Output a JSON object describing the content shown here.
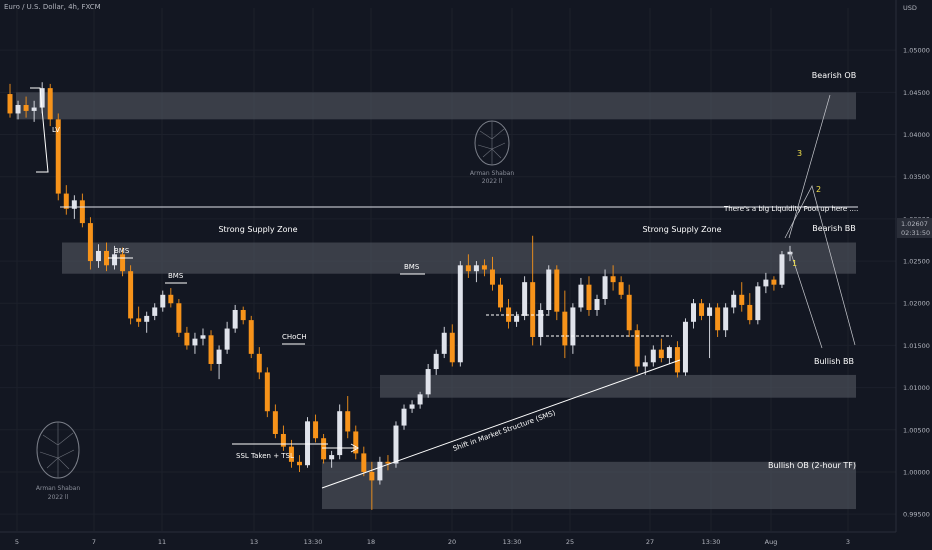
{
  "header": {
    "symbol_title": "Euro / U.S. Dollar, 4h, FXCM",
    "currency": "USD"
  },
  "price_tag": {
    "value": "1.02607",
    "countdown": "02:31:50"
  },
  "watermark": {
    "author": "Arman Shaban",
    "year": "2022 ll"
  },
  "zones": [
    {
      "label": "Bearish OB",
      "top": 1.045,
      "bottom": 1.0418,
      "x_start": 0,
      "x_end": 156
    },
    {
      "label": "Strong Supply Zone",
      "top": 1.0272,
      "bottom": 1.0235,
      "x_start": 18,
      "x_end": 156
    },
    {
      "label": "Strong Supply Zone",
      "top": 1.0272,
      "bottom": 1.0235,
      "x_start": 18,
      "x_end": 156,
      "hidden_rect": true
    },
    {
      "label": "Bearish BB",
      "top": 1.0272,
      "bottom": 1.0235,
      "x_start": 18,
      "x_end": 156,
      "hidden_rect": true
    },
    {
      "label": "Bullish BB",
      "top": 1.0115,
      "bottom": 1.0088,
      "x_start": 84,
      "x_end": 156
    },
    {
      "label": "Bullish OB (2-hour TF)",
      "top": 1.0012,
      "bottom": 0.9956,
      "x_start": 70,
      "x_end": 156
    }
  ],
  "annotations": {
    "lv": "LV",
    "bms_1": "BMS",
    "bms_2": "BMS",
    "bms_3": "BMS",
    "choch": "CHoCH",
    "ssl": "SSL Taken + TSL",
    "sms": "Shift in Market Structure (SMS)",
    "liquidity": "There's a big Liquidity Pool up here ....",
    "path_1": "1",
    "path_2": "2",
    "path_3": "3"
  },
  "chart_data": {
    "type": "candlestick",
    "title": "Euro / U.S. Dollar, 4h, FXCM",
    "ylabel": "USD",
    "ylim": [
      0.993,
      1.055
    ],
    "y_ticks": [
      "1.05000",
      "1.04500",
      "1.04000",
      "1.03500",
      "1.03000",
      "1.02500",
      "1.02000",
      "1.01500",
      "1.01000",
      "1.00500",
      "1.00000",
      "0.99500"
    ],
    "x_ticks": [
      "5",
      "7",
      "11",
      "13",
      "13:30",
      "18",
      "20",
      "13:30",
      "25",
      "27",
      "13:30",
      "Aug",
      "3"
    ],
    "colors": {
      "up": "#e0e3eb",
      "down": "#f7931a",
      "background": "#131722",
      "zone": "#4a4d57"
    },
    "candles": [
      [
        1.0448,
        1.046,
        1.042,
        1.0425
      ],
      [
        1.0425,
        1.044,
        1.0418,
        1.0435
      ],
      [
        1.0435,
        1.0445,
        1.042,
        1.0428
      ],
      [
        1.0428,
        1.044,
        1.0415,
        1.0432
      ],
      [
        1.0432,
        1.0462,
        1.0425,
        1.0455
      ],
      [
        1.0455,
        1.046,
        1.041,
        1.0418
      ],
      [
        1.0418,
        1.0425,
        1.0322,
        1.033
      ],
      [
        1.033,
        1.034,
        1.0305,
        1.0312
      ],
      [
        1.0312,
        1.0328,
        1.03,
        1.0322
      ],
      [
        1.0322,
        1.033,
        1.029,
        1.0295
      ],
      [
        1.0295,
        1.0302,
        1.024,
        1.025
      ],
      [
        1.025,
        1.027,
        1.0242,
        1.0262
      ],
      [
        1.0262,
        1.0272,
        1.0238,
        1.0245
      ],
      [
        1.0245,
        1.0268,
        1.024,
        1.0258
      ],
      [
        1.0258,
        1.0266,
        1.0232,
        1.0238
      ],
      [
        1.0238,
        1.0245,
        1.0175,
        1.0182
      ],
      [
        1.0182,
        1.0196,
        1.0172,
        1.0178
      ],
      [
        1.0178,
        1.019,
        1.0165,
        1.0185
      ],
      [
        1.0185,
        1.02,
        1.018,
        1.0195
      ],
      [
        1.0195,
        1.0215,
        1.019,
        1.021
      ],
      [
        1.021,
        1.0218,
        1.0195,
        1.02
      ],
      [
        1.02,
        1.0205,
        1.016,
        1.0165
      ],
      [
        1.0165,
        1.0172,
        1.0145,
        1.015
      ],
      [
        1.015,
        1.0165,
        1.014,
        1.0158
      ],
      [
        1.0158,
        1.017,
        1.015,
        1.0162
      ],
      [
        1.0162,
        1.0168,
        1.012,
        1.0128
      ],
      [
        1.0128,
        1.015,
        1.011,
        1.0145
      ],
      [
        1.0145,
        1.0178,
        1.014,
        1.017
      ],
      [
        1.017,
        1.0198,
        1.0165,
        1.0192
      ],
      [
        1.0192,
        1.0196,
        1.0175,
        1.018
      ],
      [
        1.018,
        1.0185,
        1.0135,
        1.014
      ],
      [
        1.014,
        1.0148,
        1.011,
        1.0118
      ],
      [
        1.0118,
        1.0124,
        1.0065,
        1.0072
      ],
      [
        1.0072,
        1.008,
        1.004,
        1.0045
      ],
      [
        1.0045,
        1.0055,
        1.0025,
        1.003
      ],
      [
        1.003,
        1.0038,
        1.0005,
        1.0012
      ],
      [
        1.0012,
        1.002,
        1.0,
        1.0008
      ],
      [
        1.0008,
        1.0065,
        1.0005,
        1.006
      ],
      [
        1.006,
        1.0068,
        1.0035,
        1.004
      ],
      [
        1.004,
        1.0045,
        1.001,
        1.0015
      ],
      [
        1.0015,
        1.0025,
        1.0005,
        1.002
      ],
      [
        1.002,
        1.008,
        1.0015,
        1.0072
      ],
      [
        1.0072,
        1.009,
        1.004,
        1.0048
      ],
      [
        1.0048,
        1.0055,
        1.0015,
        1.0022
      ],
      [
        1.0022,
        1.003,
        0.9995,
        1.0
      ],
      [
        1.0,
        1.0012,
        0.9955,
        0.999
      ],
      [
        0.999,
        1.0018,
        0.9985,
        1.0012
      ],
      [
        1.0012,
        1.002,
        1.0002,
        1.001
      ],
      [
        1.001,
        1.006,
        1.0005,
        1.0055
      ],
      [
        1.0055,
        1.008,
        1.005,
        1.0075
      ],
      [
        1.0075,
        1.0085,
        1.007,
        1.008
      ],
      [
        1.008,
        1.0095,
        1.0075,
        1.0092
      ],
      [
        1.0092,
        1.0128,
        1.0088,
        1.0122
      ],
      [
        1.0122,
        1.0145,
        1.0115,
        1.014
      ],
      [
        1.014,
        1.0172,
        1.0135,
        1.0165
      ],
      [
        1.0165,
        1.0175,
        1.0125,
        1.013
      ],
      [
        1.013,
        1.025,
        1.0125,
        1.0245
      ],
      [
        1.0245,
        1.0258,
        1.023,
        1.0238
      ],
      [
        1.0238,
        1.025,
        1.0225,
        1.0245
      ],
      [
        1.0245,
        1.0252,
        1.0232,
        1.024
      ],
      [
        1.024,
        1.0255,
        1.0215,
        1.0222
      ],
      [
        1.0222,
        1.023,
        1.019,
        1.0195
      ],
      [
        1.0195,
        1.0205,
        1.017,
        1.0178
      ],
      [
        1.0178,
        1.019,
        1.0172,
        1.0185
      ],
      [
        1.0185,
        1.0232,
        1.018,
        1.0225
      ],
      [
        1.0225,
        1.028,
        1.015,
        1.016
      ],
      [
        1.016,
        1.02,
        1.015,
        1.0192
      ],
      [
        1.0192,
        1.0245,
        1.0185,
        1.024
      ],
      [
        1.024,
        1.0245,
        1.018,
        1.019
      ],
      [
        1.019,
        1.0215,
        1.0135,
        1.015
      ],
      [
        1.015,
        1.02,
        1.014,
        1.0195
      ],
      [
        1.0195,
        1.023,
        1.019,
        1.0222
      ],
      [
        1.0222,
        1.0232,
        1.0185,
        1.0192
      ],
      [
        1.0192,
        1.021,
        1.0185,
        1.0205
      ],
      [
        1.0205,
        1.024,
        1.0198,
        1.0232
      ],
      [
        1.0232,
        1.0245,
        1.0215,
        1.0225
      ],
      [
        1.0225,
        1.0232,
        1.0205,
        1.021
      ],
      [
        1.021,
        1.0222,
        1.016,
        1.0168
      ],
      [
        1.0168,
        1.0175,
        1.0118,
        1.0125
      ],
      [
        1.0125,
        1.0138,
        1.0115,
        1.013
      ],
      [
        1.013,
        1.015,
        1.0125,
        1.0145
      ],
      [
        1.0145,
        1.0158,
        1.013,
        1.0135
      ],
      [
        1.0135,
        1.015,
        1.0128,
        1.0148
      ],
      [
        1.0148,
        1.0155,
        1.0112,
        1.0118
      ],
      [
        1.0118,
        1.0182,
        1.0114,
        1.0178
      ],
      [
        1.0178,
        1.0205,
        1.017,
        1.02
      ],
      [
        1.02,
        1.0205,
        1.018,
        1.0185
      ],
      [
        1.0185,
        1.02,
        1.0135,
        1.0195
      ],
      [
        1.0195,
        1.02,
        1.016,
        1.0168
      ],
      [
        1.0168,
        1.02,
        1.016,
        1.0195
      ],
      [
        1.0195,
        1.0215,
        1.0188,
        1.021
      ],
      [
        1.021,
        1.0225,
        1.019,
        1.0198
      ],
      [
        1.0198,
        1.0212,
        1.0175,
        1.018
      ],
      [
        1.018,
        1.0225,
        1.0175,
        1.022
      ],
      [
        1.022,
        1.0236,
        1.0212,
        1.0228
      ],
      [
        1.0228,
        1.0232,
        1.0215,
        1.0222
      ],
      [
        1.0222,
        1.0262,
        1.0218,
        1.0258
      ],
      [
        1.0258,
        1.0268,
        1.025,
        1.0261
      ]
    ]
  }
}
